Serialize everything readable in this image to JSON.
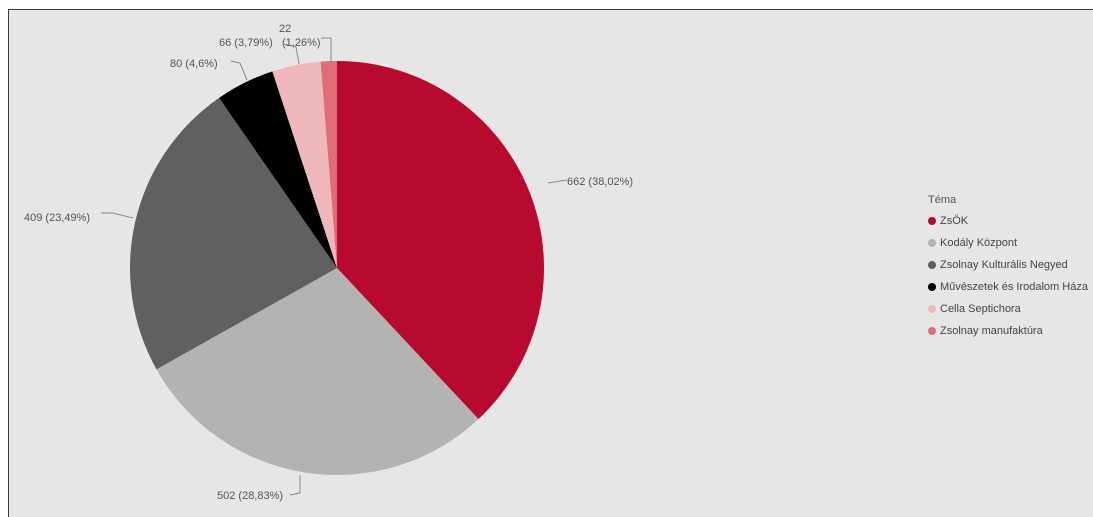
{
  "chart_data": {
    "type": "pie",
    "legend_title": "Téma",
    "legend_position": "right",
    "slices": [
      {
        "name": "ZsÖK",
        "value": 662,
        "label": "662 (38,02%)",
        "color": "#b80a2e"
      },
      {
        "name": "Kodály Központ",
        "value": 502,
        "label": "502 (28,83%)",
        "color": "#b3b3b3"
      },
      {
        "name": "Zsolnay Kulturális Negyed",
        "value": 409,
        "label": "409 (23,49%)",
        "color": "#606060"
      },
      {
        "name": "Művészetek és Irodalom Háza",
        "value": 80,
        "label": "80 (4,6%)",
        "color": "#000000"
      },
      {
        "name": "Cella Septichora",
        "value": 66,
        "label": "66 (3,79%)",
        "color": "#f0b8bc"
      },
      {
        "name": "Zsolnay manufaktúra",
        "value": 22,
        "label": "22\n(1,26%)",
        "color": "#e06c78"
      }
    ]
  }
}
